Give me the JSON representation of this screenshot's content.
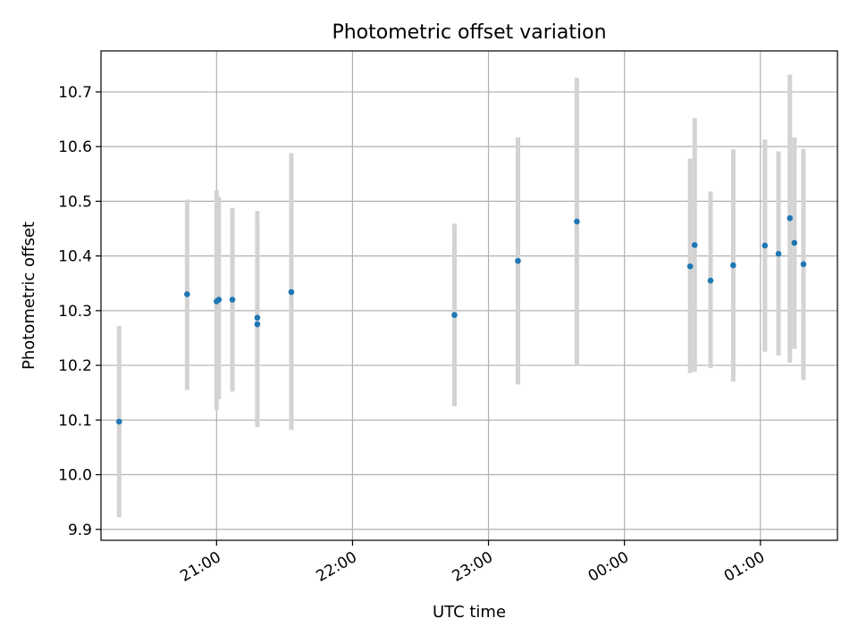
{
  "chart_data": {
    "type": "scatter",
    "title": "Photometric offset variation",
    "xlabel": "UTC time",
    "ylabel": "Photometric offset",
    "grid": true,
    "x_axis_kind": "time",
    "x_range": [
      "20:09",
      "01:34"
    ],
    "ylim": [
      9.88,
      10.775
    ],
    "x_ticks": [
      "21:00",
      "22:00",
      "23:00",
      "00:00",
      "01:00"
    ],
    "y_ticks": [
      "9.9",
      "10.0",
      "10.1",
      "10.2",
      "10.3",
      "10.4",
      "10.5",
      "10.6",
      "10.7"
    ],
    "colors": {
      "marker": "#1f77b4",
      "errorbar": "#d3d3d3",
      "grid": "#b0b0b0"
    },
    "points": [
      {
        "time": "20:17",
        "y": 10.097,
        "ylow": 9.922,
        "yhigh": 10.272
      },
      {
        "time": "20:47",
        "y": 10.33,
        "ylow": 10.155,
        "yhigh": 10.503
      },
      {
        "time": "21:00",
        "y": 10.317,
        "ylow": 10.118,
        "yhigh": 10.52
      },
      {
        "time": "21:01",
        "y": 10.32,
        "ylow": 10.138,
        "yhigh": 10.508
      },
      {
        "time": "21:07",
        "y": 10.32,
        "ylow": 10.152,
        "yhigh": 10.488
      },
      {
        "time": "21:18",
        "y": 10.287,
        "ylow": 10.1,
        "yhigh": 10.482
      },
      {
        "time": "21:18",
        "y": 10.275,
        "ylow": 10.087,
        "yhigh": 10.463
      },
      {
        "time": "21:33",
        "y": 10.334,
        "ylow": 10.082,
        "yhigh": 10.588
      },
      {
        "time": "22:45",
        "y": 10.292,
        "ylow": 10.125,
        "yhigh": 10.459
      },
      {
        "time": "23:13",
        "y": 10.391,
        "ylow": 10.165,
        "yhigh": 10.617
      },
      {
        "time": "23:39",
        "y": 10.463,
        "ylow": 10.2,
        "yhigh": 10.726
      },
      {
        "time": "00:29",
        "y": 10.381,
        "ylow": 10.186,
        "yhigh": 10.578
      },
      {
        "time": "00:31",
        "y": 10.42,
        "ylow": 10.188,
        "yhigh": 10.652
      },
      {
        "time": "00:38",
        "y": 10.355,
        "ylow": 10.195,
        "yhigh": 10.518
      },
      {
        "time": "00:48",
        "y": 10.383,
        "ylow": 10.17,
        "yhigh": 10.595
      },
      {
        "time": "01:02",
        "y": 10.419,
        "ylow": 10.225,
        "yhigh": 10.613
      },
      {
        "time": "01:08",
        "y": 10.404,
        "ylow": 10.218,
        "yhigh": 10.591
      },
      {
        "time": "01:13",
        "y": 10.469,
        "ylow": 10.205,
        "yhigh": 10.732
      },
      {
        "time": "01:15",
        "y": 10.424,
        "ylow": 10.23,
        "yhigh": 10.617
      },
      {
        "time": "01:19",
        "y": 10.385,
        "ylow": 10.173,
        "yhigh": 10.596
      }
    ]
  }
}
